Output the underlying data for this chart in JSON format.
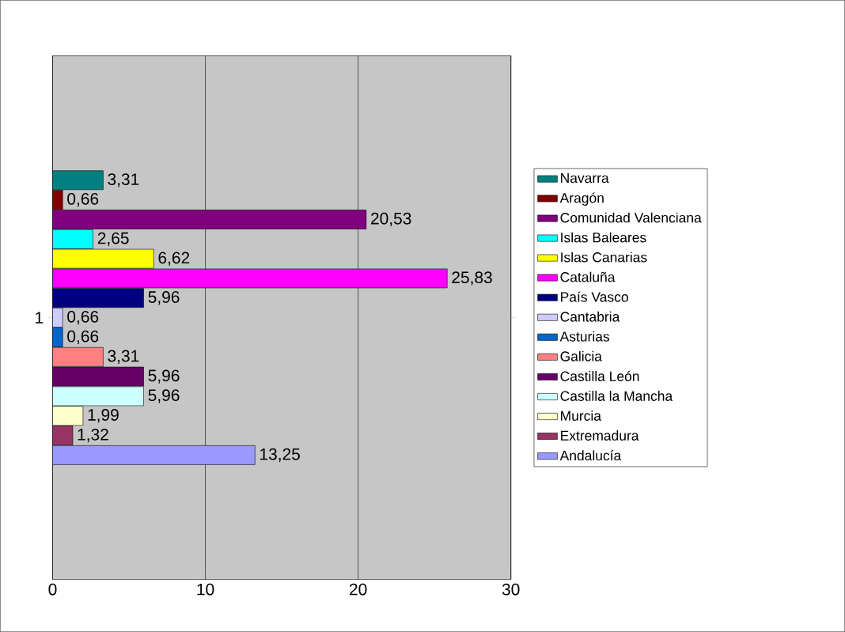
{
  "chart_data": {
    "type": "bar",
    "orientation": "horizontal",
    "categories": [
      "1"
    ],
    "xlim": [
      0,
      30
    ],
    "xticks": [
      0,
      10,
      20,
      30
    ],
    "grid": "x",
    "legend": "right",
    "series": [
      {
        "name": "Navarra",
        "color": "#008080",
        "values": [
          3.31
        ],
        "value_labels": [
          "3,31"
        ]
      },
      {
        "name": "Aragón",
        "color": "#800000",
        "values": [
          0.66
        ],
        "value_labels": [
          "0,66"
        ]
      },
      {
        "name": "Comunidad Valenciana",
        "color": "#800080",
        "values": [
          20.53
        ],
        "value_labels": [
          "20,53"
        ]
      },
      {
        "name": "Islas Baleares",
        "color": "#00ffff",
        "values": [
          2.65
        ],
        "value_labels": [
          "2,65"
        ]
      },
      {
        "name": "Islas Canarias",
        "color": "#ffff00",
        "values": [
          6.62
        ],
        "value_labels": [
          "6,62"
        ]
      },
      {
        "name": "Cataluña",
        "color": "#ff00ff",
        "values": [
          25.83
        ],
        "value_labels": [
          "25,83"
        ]
      },
      {
        "name": "País Vasco",
        "color": "#000080",
        "values": [
          5.96
        ],
        "value_labels": [
          "5,96"
        ]
      },
      {
        "name": "Cantabria",
        "color": "#ccccff",
        "values": [
          0.66
        ],
        "value_labels": [
          "0,66"
        ]
      },
      {
        "name": "Asturias",
        "color": "#0066cc",
        "values": [
          0.66
        ],
        "value_labels": [
          "0,66"
        ]
      },
      {
        "name": "Galicia",
        "color": "#ff8080",
        "values": [
          3.31
        ],
        "value_labels": [
          "3,31"
        ]
      },
      {
        "name": "Castilla León",
        "color": "#660066",
        "values": [
          5.96
        ],
        "value_labels": [
          "5,96"
        ]
      },
      {
        "name": "Castilla la Mancha",
        "color": "#ccffff",
        "values": [
          5.96
        ],
        "value_labels": [
          "5,96"
        ]
      },
      {
        "name": "Murcia",
        "color": "#ffffcc",
        "values": [
          1.99
        ],
        "value_labels": [
          "1,99"
        ]
      },
      {
        "name": "Extremadura",
        "color": "#993366",
        "values": [
          1.32
        ],
        "value_labels": [
          "1,32"
        ]
      },
      {
        "name": "Andalucía",
        "color": "#9999ff",
        "values": [
          13.25
        ],
        "value_labels": [
          "13,25"
        ]
      }
    ]
  }
}
